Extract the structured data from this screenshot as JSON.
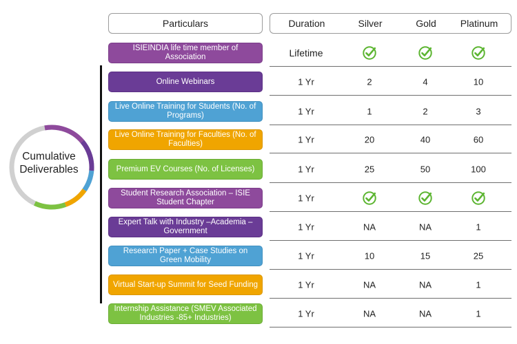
{
  "header": {
    "particulars": "Particulars",
    "duration": "Duration",
    "silver": "Silver",
    "gold": "Gold",
    "platinum": "Platinum"
  },
  "side_label": "Cumulative Deliverables",
  "colors": {
    "purple": "#8e4a9c",
    "dark_purple": "#6a3c96",
    "blue": "#4fa2d4",
    "orange": "#f0a500",
    "green": "#7dc242",
    "check": "#5cb531"
  },
  "rows": [
    {
      "label": "ISIEINDIA life time member of Association",
      "duration": "Lifetime",
      "silver": "check",
      "gold": "check",
      "platinum": "check"
    },
    {
      "label": "Online Webinars",
      "duration": "1 Yr",
      "silver": "2",
      "gold": "4",
      "platinum": "10"
    },
    {
      "label": "Live Online Training for Students (No. of Programs)",
      "duration": "1 Yr",
      "silver": "1",
      "gold": "2",
      "platinum": "3"
    },
    {
      "label": "Live Online Training for Faculties (No. of Faculties)",
      "duration": "1 Yr",
      "silver": "20",
      "gold": "40",
      "platinum": "60"
    },
    {
      "label": "Premium EV Courses (No. of Licenses)",
      "duration": "1 Yr",
      "silver": "25",
      "gold": "50",
      "platinum": "100"
    },
    {
      "label": "Student Research Association – ISIE Student Chapter",
      "duration": "1 Yr",
      "silver": "check",
      "gold": "check",
      "platinum": "check"
    },
    {
      "label": "Expert Talk with Industry –Academia – Government",
      "duration": "1 Yr",
      "silver": "NA",
      "gold": "NA",
      "platinum": "1"
    },
    {
      "label": "Research Paper + Case Studies on Green Mobility",
      "duration": "1 Yr",
      "silver": "10",
      "gold": "15",
      "platinum": "25"
    },
    {
      "label": "Virtual Start-up Summit for Seed Funding",
      "duration": "1 Yr",
      "silver": "NA",
      "gold": "NA",
      "platinum": "1"
    },
    {
      "label": "Internship Assistance (SMEV Associated Industries -85+ Industries)",
      "duration": "1 Yr",
      "silver": "NA",
      "gold": "NA",
      "platinum": "1"
    }
  ]
}
